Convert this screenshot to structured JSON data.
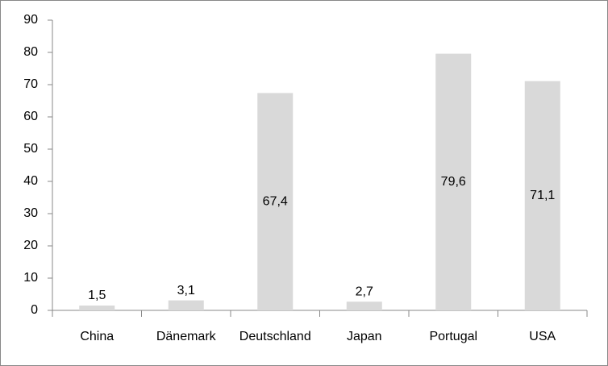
{
  "chart_data": {
    "type": "bar",
    "categories": [
      "China",
      "Dänemark",
      "Deutschland",
      "Japan",
      "Portugal",
      "USA"
    ],
    "values": [
      1.5,
      3.1,
      67.4,
      2.7,
      79.6,
      71.1
    ],
    "value_labels": [
      "1,5",
      "3,1",
      "67,4",
      "2,7",
      "79,6",
      "71,1"
    ],
    "color": "#d9d9d9",
    "ylim": [
      0,
      90
    ],
    "yticks": [
      0,
      10,
      20,
      30,
      40,
      50,
      60,
      70,
      80,
      90
    ],
    "grid": false
  }
}
